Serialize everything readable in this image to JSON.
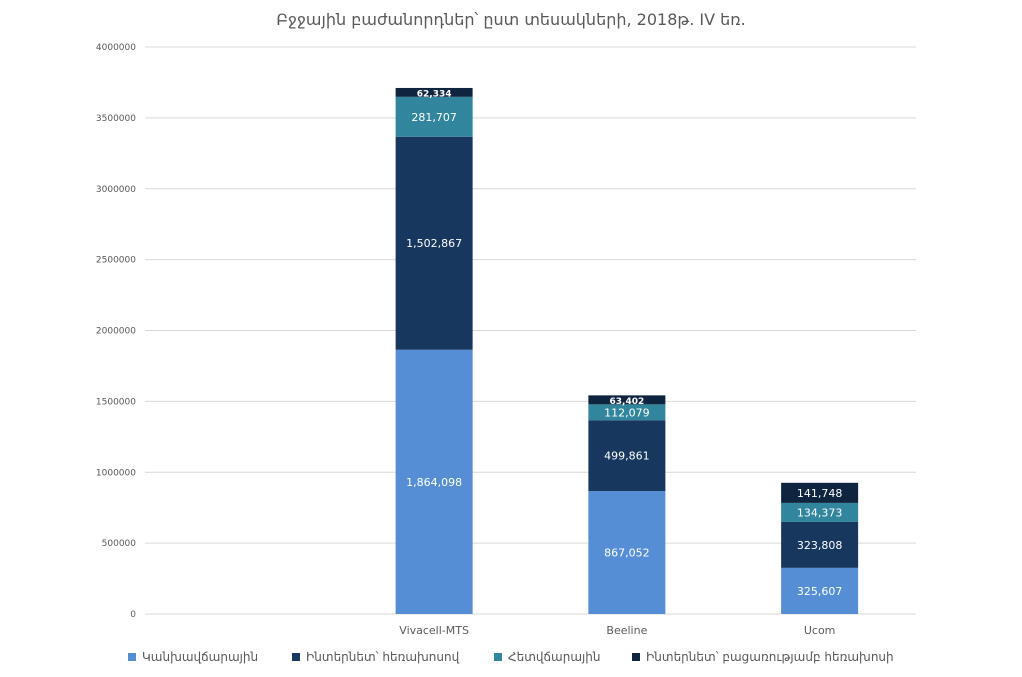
{
  "chart_data": {
    "type": "bar",
    "stacked": true,
    "title": "Բջջային բաժանորդներ՝ ըստ տեսակների, 2018թ. IV եռ.",
    "categories": [
      "",
      "Vivacell-MTS",
      "Beeline",
      "Ucom"
    ],
    "ylim": [
      0,
      4000000
    ],
    "yticks": [
      "0",
      "500000",
      "1000000",
      "1500000",
      "2000000",
      "2500000",
      "3000000",
      "3500000",
      "4000000"
    ],
    "grid": true,
    "legend_position": "bottom",
    "series": [
      {
        "name": "Կանխավճարային",
        "color": "#558ed5",
        "values": [
          0,
          1864098,
          867052,
          325607
        ],
        "labels": [
          "",
          "1,864,098",
          "867,052",
          "325,607"
        ]
      },
      {
        "name": "Ինտերնետ՝ հեռախոսով",
        "color": "#17375e",
        "values": [
          0,
          1502867,
          499861,
          323808
        ],
        "labels": [
          "",
          "1,502,867",
          "499,861",
          "323,808"
        ]
      },
      {
        "name": "Հետվճարային",
        "color": "#31859c",
        "values": [
          0,
          281707,
          112079,
          134373
        ],
        "labels": [
          "",
          "281,707",
          "112,079",
          "134,373"
        ]
      },
      {
        "name": "Ինտերնետ՝ բացառությամբ հեռախոսի",
        "color": "#0f243e",
        "values": [
          0,
          62334,
          63402,
          141748
        ],
        "labels": [
          "",
          "62,334",
          "63,402",
          "141,748"
        ]
      }
    ]
  }
}
